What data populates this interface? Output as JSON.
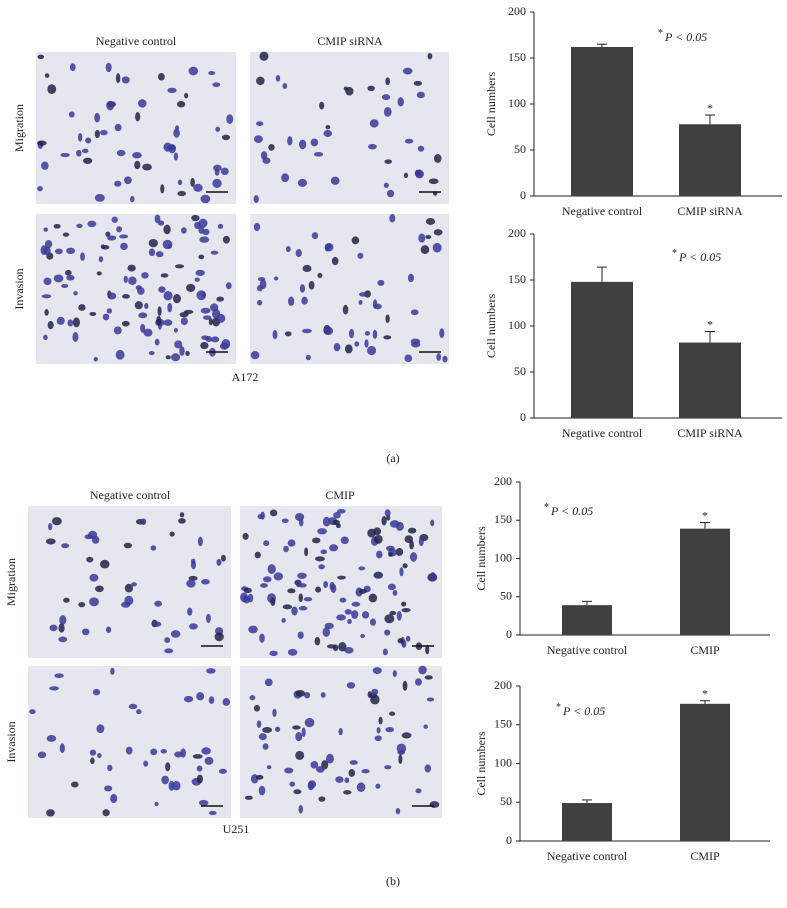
{
  "figure": {
    "panels": [
      {
        "label": "(a)",
        "cell_line": "A172",
        "columns": [
          "Negative control",
          "CMIP siRNA"
        ],
        "rows": [
          "Migration",
          "Invasion"
        ]
      },
      {
        "label": "(b)",
        "cell_line": "U251",
        "columns": [
          "Negative control",
          "CMIP"
        ],
        "rows": [
          "Migration",
          "Invasion"
        ]
      }
    ]
  },
  "chart_data": [
    {
      "type": "bar",
      "ylabel": "Cell numbers",
      "categories": [
        "Negative control",
        "CMIP siRNA"
      ],
      "values": [
        162,
        78
      ],
      "errors": [
        3,
        10
      ],
      "significance_labels": [
        null,
        "*"
      ],
      "annotation": {
        "mark": "*",
        "text": "P < 0.05"
      },
      "color": "#404040",
      "ylim": [
        0,
        200
      ],
      "yticks": [
        0,
        50,
        100,
        150,
        200
      ]
    },
    {
      "type": "bar",
      "ylabel": "Cell numbers",
      "categories": [
        "Negative control",
        "CMIP siRNA"
      ],
      "values": [
        148,
        82
      ],
      "errors": [
        16,
        12
      ],
      "significance_labels": [
        null,
        "*"
      ],
      "annotation": {
        "mark": "*",
        "text": "P < 0.05"
      },
      "color": "#404040",
      "ylim": [
        0,
        200
      ],
      "yticks": [
        0,
        50,
        100,
        150,
        200
      ]
    },
    {
      "type": "bar",
      "ylabel": "Cell numbers",
      "categories": [
        "Negative control",
        "CMIP"
      ],
      "values": [
        39,
        139
      ],
      "errors": [
        5,
        8
      ],
      "significance_labels": [
        null,
        "*"
      ],
      "annotation": {
        "mark": "*",
        "text": "P < 0.05"
      },
      "color": "#404040",
      "ylim": [
        0,
        200
      ],
      "yticks": [
        0,
        50,
        100,
        150,
        200
      ]
    },
    {
      "type": "bar",
      "ylabel": "Cell numbers",
      "categories": [
        "Negative control",
        "CMIP"
      ],
      "values": [
        49,
        177
      ],
      "errors": [
        4,
        4
      ],
      "significance_labels": [
        null,
        "*"
      ],
      "annotation": {
        "mark": "*",
        "text": "P < 0.05"
      },
      "color": "#404040",
      "ylim": [
        0,
        200
      ],
      "yticks": [
        0,
        50,
        100,
        150,
        200
      ]
    }
  ]
}
